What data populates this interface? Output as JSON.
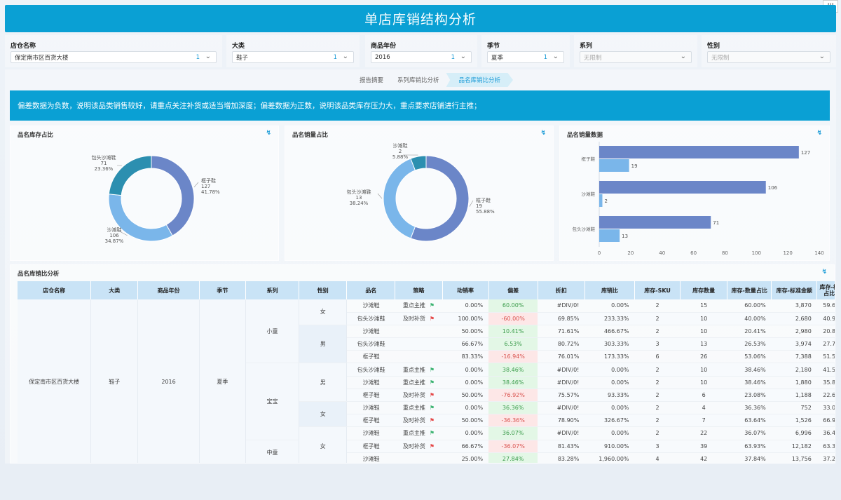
{
  "header": {
    "title": "单店库销结构分析",
    "toolbar_icon_label": "卅"
  },
  "filters": [
    {
      "label": "店仓名称",
      "value": "保定南市区百货大楼",
      "count": "1",
      "disabled": false
    },
    {
      "label": "大类",
      "value": "鞋子",
      "count": "1",
      "disabled": false
    },
    {
      "label": "商品年份",
      "value": "2016",
      "count": "1",
      "disabled": false
    },
    {
      "label": "季节",
      "value": "夏季",
      "count": "1",
      "disabled": false
    },
    {
      "label": "系列",
      "value": "无限制",
      "count": "",
      "disabled": true
    },
    {
      "label": "性别",
      "value": "无限制",
      "count": "",
      "disabled": true
    }
  ],
  "tabs": [
    "报告摘要",
    "系列库销比分析",
    "品名库销比分析"
  ],
  "active_tab": "品名库销比分析",
  "notice": "偏差数据为负数，说明该品类销售较好，请重点关注补货或适当增加深度；偏差数据为正数，说明该品类库存压力大，重点要求店铺进行主推；",
  "cards": {
    "stock_ratio_title": "品名库存占比",
    "sales_ratio_title": "品名销量占比",
    "sales_data_title": "品名销量数据",
    "table_title": "品名库销比分析",
    "refresh_icon": "↯"
  },
  "chart_data": [
    {
      "type": "pie",
      "title": "品名库存占比",
      "donut": true,
      "slices": [
        {
          "name": "框子鞋",
          "value": 127,
          "percent": "41.78%",
          "color": "#6b86c8"
        },
        {
          "name": "沙滩鞋",
          "value": 106,
          "percent": "34.87%",
          "color": "#7ab6ea"
        },
        {
          "name": "包头沙滩鞋",
          "value": 71,
          "percent": "23.36%",
          "color": "#2c8fb0"
        }
      ]
    },
    {
      "type": "pie",
      "title": "品名销量占比",
      "donut": true,
      "slices": [
        {
          "name": "框子鞋",
          "value": 19,
          "percent": "55.88%",
          "color": "#6b86c8"
        },
        {
          "name": "包头沙滩鞋",
          "value": 13,
          "percent": "38.24%",
          "color": "#7ab6ea"
        },
        {
          "name": "沙滩鞋",
          "value": 2,
          "percent": "5.88%",
          "color": "#2c8fb0"
        }
      ]
    },
    {
      "type": "bar",
      "orientation": "horizontal",
      "title": "品名销量数据",
      "categories": [
        "框子鞋",
        "沙滩鞋",
        "包头沙滩鞋"
      ],
      "series": [
        {
          "values": [
            127,
            106,
            71
          ],
          "color": "#6b86c8"
        },
        {
          "values": [
            19,
            2,
            13
          ],
          "color": "#7ab6ea"
        }
      ],
      "xlim": [
        0,
        140
      ],
      "xticks": [
        0,
        20,
        40,
        60,
        80,
        100,
        120,
        140
      ],
      "grid": false
    }
  ],
  "table": {
    "columns": [
      "店仓名称",
      "大类",
      "商品年份",
      "季节",
      "系列",
      "性别",
      "品名",
      "策略",
      "动销率",
      "偏差",
      "折扣",
      "库销比",
      "库存-SKU",
      "库存数量",
      "库存-数量占比",
      "库存-标准金额",
      "库存-标 占比"
    ],
    "store": "保定南市区百货大楼",
    "category": "鞋子",
    "year": "2016",
    "season": "夏季",
    "series_groups": [
      {
        "name": "小童",
        "rows": 5
      },
      {
        "name": "宝宝",
        "rows": 6
      },
      {
        "name": "中童",
        "rows": 3
      }
    ],
    "gender_groups": [
      {
        "name": "女",
        "rows": 2
      },
      {
        "name": "男",
        "rows": 3
      },
      {
        "name": "男",
        "rows": 3
      },
      {
        "name": "女",
        "rows": 2
      },
      {
        "name": "女",
        "rows": 3
      }
    ],
    "rows": [
      {
        "name": "沙滩鞋",
        "strategy": "重点主推",
        "flag": "green",
        "sell_rate": "0.00%",
        "deviation": "60.00%",
        "dev_sign": "pos",
        "discount": "#DIV/0!",
        "ratio": "0.00%",
        "sku": "2",
        "qty": "15",
        "qty_pct": "60.00%",
        "amount": "3,870",
        "amt_pct": "59.6"
      },
      {
        "name": "包头沙滩鞋",
        "strategy": "及时补货",
        "flag": "red",
        "sell_rate": "100.00%",
        "deviation": "-60.00%",
        "dev_sign": "neg",
        "discount": "69.85%",
        "ratio": "233.33%",
        "sku": "2",
        "qty": "10",
        "qty_pct": "40.00%",
        "amount": "2,680",
        "amt_pct": "40.9"
      },
      {
        "name": "沙滩鞋",
        "strategy": "",
        "flag": "",
        "sell_rate": "50.00%",
        "deviation": "10.41%",
        "dev_sign": "pos",
        "discount": "71.61%",
        "ratio": "466.67%",
        "sku": "2",
        "qty": "10",
        "qty_pct": "20.41%",
        "amount": "2,980",
        "amt_pct": "20.8"
      },
      {
        "name": "包头沙滩鞋",
        "strategy": "",
        "flag": "",
        "sell_rate": "66.67%",
        "deviation": "6.53%",
        "dev_sign": "pos",
        "discount": "80.72%",
        "ratio": "303.33%",
        "sku": "3",
        "qty": "13",
        "qty_pct": "26.53%",
        "amount": "3,974",
        "amt_pct": "27.7"
      },
      {
        "name": "框子鞋",
        "strategy": "",
        "flag": "",
        "sell_rate": "83.33%",
        "deviation": "-16.94%",
        "dev_sign": "neg",
        "discount": "76.01%",
        "ratio": "173.33%",
        "sku": "6",
        "qty": "26",
        "qty_pct": "53.06%",
        "amount": "7,388",
        "amt_pct": "51.5"
      },
      {
        "name": "包头沙滩鞋",
        "strategy": "重点主推",
        "flag": "green",
        "sell_rate": "0.00%",
        "deviation": "38.46%",
        "dev_sign": "pos",
        "discount": "#DIV/0!",
        "ratio": "0.00%",
        "sku": "2",
        "qty": "10",
        "qty_pct": "38.46%",
        "amount": "2,180",
        "amt_pct": "41.5"
      },
      {
        "name": "沙滩鞋",
        "strategy": "重点主推",
        "flag": "green",
        "sell_rate": "0.00%",
        "deviation": "38.46%",
        "dev_sign": "pos",
        "discount": "#DIV/0!",
        "ratio": "0.00%",
        "sku": "2",
        "qty": "10",
        "qty_pct": "38.46%",
        "amount": "1,880",
        "amt_pct": "35.8"
      },
      {
        "name": "框子鞋",
        "strategy": "及时补货",
        "flag": "red",
        "sell_rate": "50.00%",
        "deviation": "-76.92%",
        "dev_sign": "neg",
        "discount": "75.57%",
        "ratio": "93.33%",
        "sku": "2",
        "qty": "6",
        "qty_pct": "23.08%",
        "amount": "1,188",
        "amt_pct": "22.6"
      },
      {
        "name": "沙滩鞋",
        "strategy": "重点主推",
        "flag": "green",
        "sell_rate": "0.00%",
        "deviation": "36.36%",
        "dev_sign": "pos",
        "discount": "#DIV/0!",
        "ratio": "0.00%",
        "sku": "2",
        "qty": "4",
        "qty_pct": "36.36%",
        "amount": "752",
        "amt_pct": "33.0"
      },
      {
        "name": "框子鞋",
        "strategy": "及时补货",
        "flag": "red",
        "sell_rate": "50.00%",
        "deviation": "-36.36%",
        "dev_sign": "neg",
        "discount": "78.90%",
        "ratio": "326.67%",
        "sku": "2",
        "qty": "7",
        "qty_pct": "63.64%",
        "amount": "1,526",
        "amt_pct": "66.9"
      },
      {
        "name": "沙滩鞋",
        "strategy": "重点主推",
        "flag": "green",
        "sell_rate": "0.00%",
        "deviation": "36.07%",
        "dev_sign": "pos",
        "discount": "#DIV/0!",
        "ratio": "0.00%",
        "sku": "2",
        "qty": "22",
        "qty_pct": "36.07%",
        "amount": "6,996",
        "amt_pct": "36.4"
      },
      {
        "name": "框子鞋",
        "strategy": "及时补货",
        "flag": "red",
        "sell_rate": "66.67%",
        "deviation": "-36.07%",
        "dev_sign": "neg",
        "discount": "81.43%",
        "ratio": "910.00%",
        "sku": "3",
        "qty": "39",
        "qty_pct": "63.93%",
        "amount": "12,182",
        "amt_pct": "63.3"
      },
      {
        "name": "沙滩鞋",
        "strategy": "",
        "flag": "",
        "sell_rate": "25.00%",
        "deviation": "27.84%",
        "dev_sign": "pos",
        "discount": "83.28%",
        "ratio": "1,960.00%",
        "sku": "4",
        "qty": "42",
        "qty_pct": "37.84%",
        "amount": "13,756",
        "amt_pct": "37.2"
      }
    ]
  }
}
